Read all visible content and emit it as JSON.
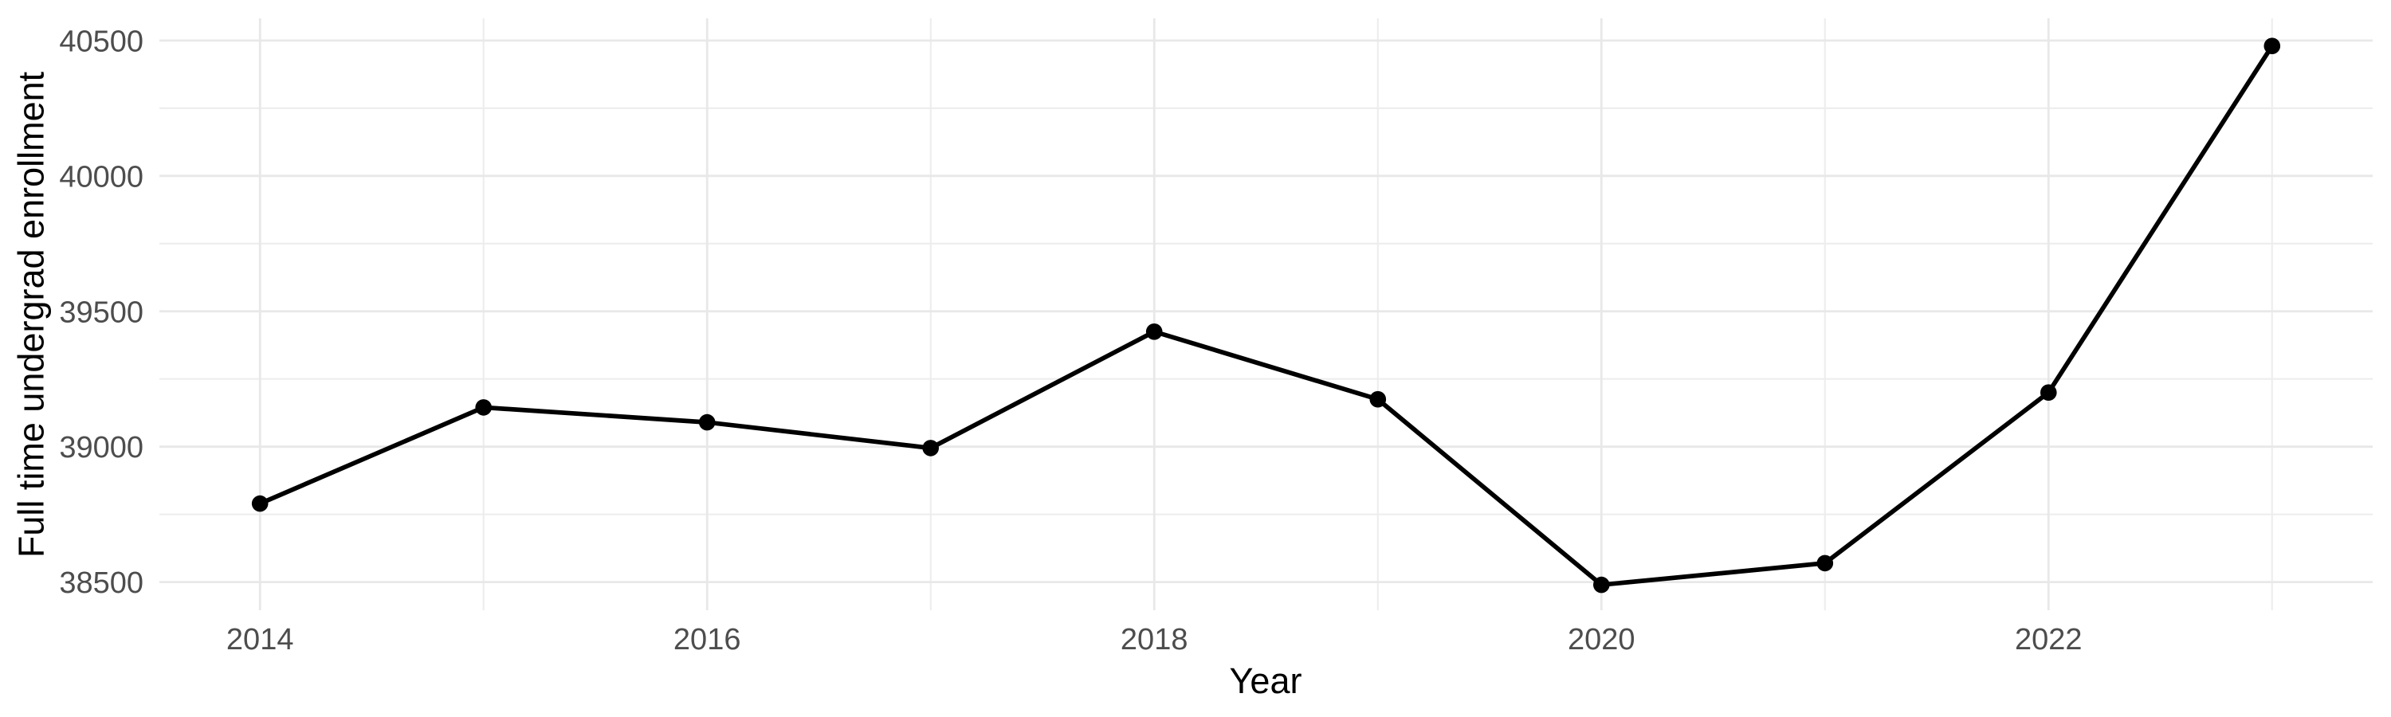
{
  "figure": {
    "background_color": "#FFFFFF"
  },
  "chart_data": {
    "type": "line",
    "title": "",
    "xlabel": "Year",
    "ylabel": "Full time undergrad enrollment",
    "x": [
      2014,
      2015,
      2016,
      2017,
      2018,
      2019,
      2020,
      2021,
      2022,
      2023
    ],
    "series": [
      {
        "name": "Full time undergrad enrollment",
        "values": [
          38790,
          39145,
          39090,
          38995,
          39425,
          39175,
          38490,
          38570,
          39200,
          40480
        ]
      }
    ],
    "x_major_ticks": [
      2014,
      2016,
      2018,
      2020,
      2022
    ],
    "x_major_tick_labels": [
      "2014",
      "2016",
      "2018",
      "2020",
      "2022"
    ],
    "x_minor_ticks": [
      2015,
      2017,
      2019,
      2021,
      2023
    ],
    "y_major_ticks": [
      38500,
      39000,
      39500,
      40000,
      40500
    ],
    "y_major_tick_labels": [
      "38500",
      "39000",
      "39500",
      "40000",
      "40500"
    ],
    "y_minor_ticks": [
      38750,
      39250,
      39750,
      40250
    ],
    "x_range": [
      2013.55,
      2023.45
    ],
    "y_range": [
      38396,
      40582
    ],
    "grid": true,
    "legend": false,
    "colors": {
      "line": "#000000",
      "point": "#000000",
      "grid_major": "#E8E8E8",
      "grid_minor": "#EDEDED",
      "tick_text": "#4D4D4D",
      "axis_title": "#000000",
      "background": "#FFFFFF"
    }
  }
}
